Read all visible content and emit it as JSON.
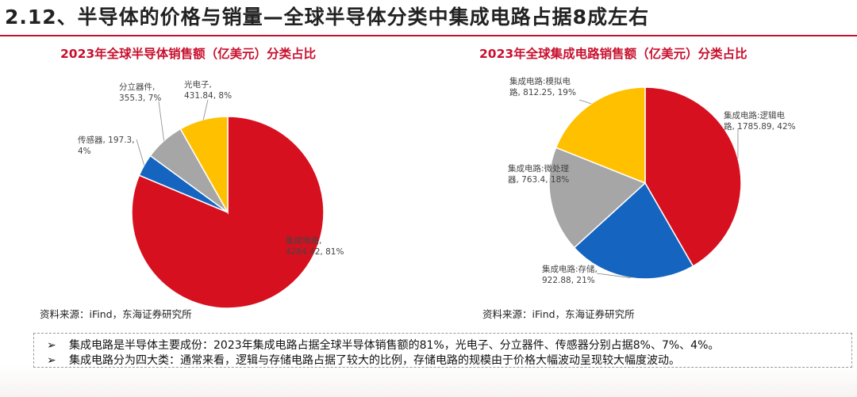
{
  "slide": {
    "title": "2.12、半导体的价格与销量—全球半导体分类中集成电路占据8成左右"
  },
  "chart_data": [
    {
      "type": "pie",
      "title": "2023年全球半导体销售额（亿美元）分类占比",
      "slices": [
        {
          "name": "集成电路",
          "value": 4284.42,
          "percent": 81,
          "color": "#d7101f",
          "label_lines": [
            "集成电路,",
            "4284.42, 81%"
          ]
        },
        {
          "name": "传感器",
          "value": 197.3,
          "percent": 4,
          "color": "#1565c0",
          "label_lines": [
            "传感器, 197.3,",
            "4%"
          ]
        },
        {
          "name": "分立器件",
          "value": 355.3,
          "percent": 7,
          "color": "#a6a6a6",
          "label_lines": [
            "分立器件,",
            "355.3, 7%"
          ]
        },
        {
          "name": "光电子",
          "value": 431.84,
          "percent": 8,
          "color": "#ffc000",
          "label_lines": [
            "光电子,",
            "431.84, 8%"
          ]
        }
      ]
    },
    {
      "type": "pie",
      "title": "2023年全球集成电路销售额（亿美元）分类占比",
      "slices": [
        {
          "name": "集成电路:逻辑电路",
          "value": 1785.89,
          "percent": 42,
          "color": "#d7101f",
          "label_lines": [
            "集成电路:逻辑电",
            "路, 1785.89, 42%"
          ]
        },
        {
          "name": "集成电路:存储",
          "value": 922.88,
          "percent": 21,
          "color": "#1565c0",
          "label_lines": [
            "集成电路:存储,",
            "922.88, 21%"
          ]
        },
        {
          "name": "集成电路:微处理器",
          "value": 763.4,
          "percent": 18,
          "color": "#a6a6a6",
          "label_lines": [
            "集成电路:微处理",
            "器, 763.4, 18%"
          ]
        },
        {
          "name": "集成电路:模拟电路",
          "value": 812.25,
          "percent": 19,
          "color": "#ffc000",
          "label_lines": [
            "集成电路:模拟电",
            "路, 812.25, 19%"
          ]
        }
      ]
    }
  ],
  "sources": {
    "left": "资料来源：iFind，东海证券研究所",
    "right": "资料来源：iFind，东海证券研究所"
  },
  "notes": {
    "bullet": "➢",
    "line1": "集成电路是半导体主要成份：2023年集成电路占据全球半导体销售额的81%，光电子、分立器件、传感器分别占据8%、7%、4%。",
    "line2": "集成电路分为四大类：通常来看，逻辑与存储电路占据了较大的比例，存储电路的规模由于价格大幅波动呈现较大幅度波动。"
  }
}
